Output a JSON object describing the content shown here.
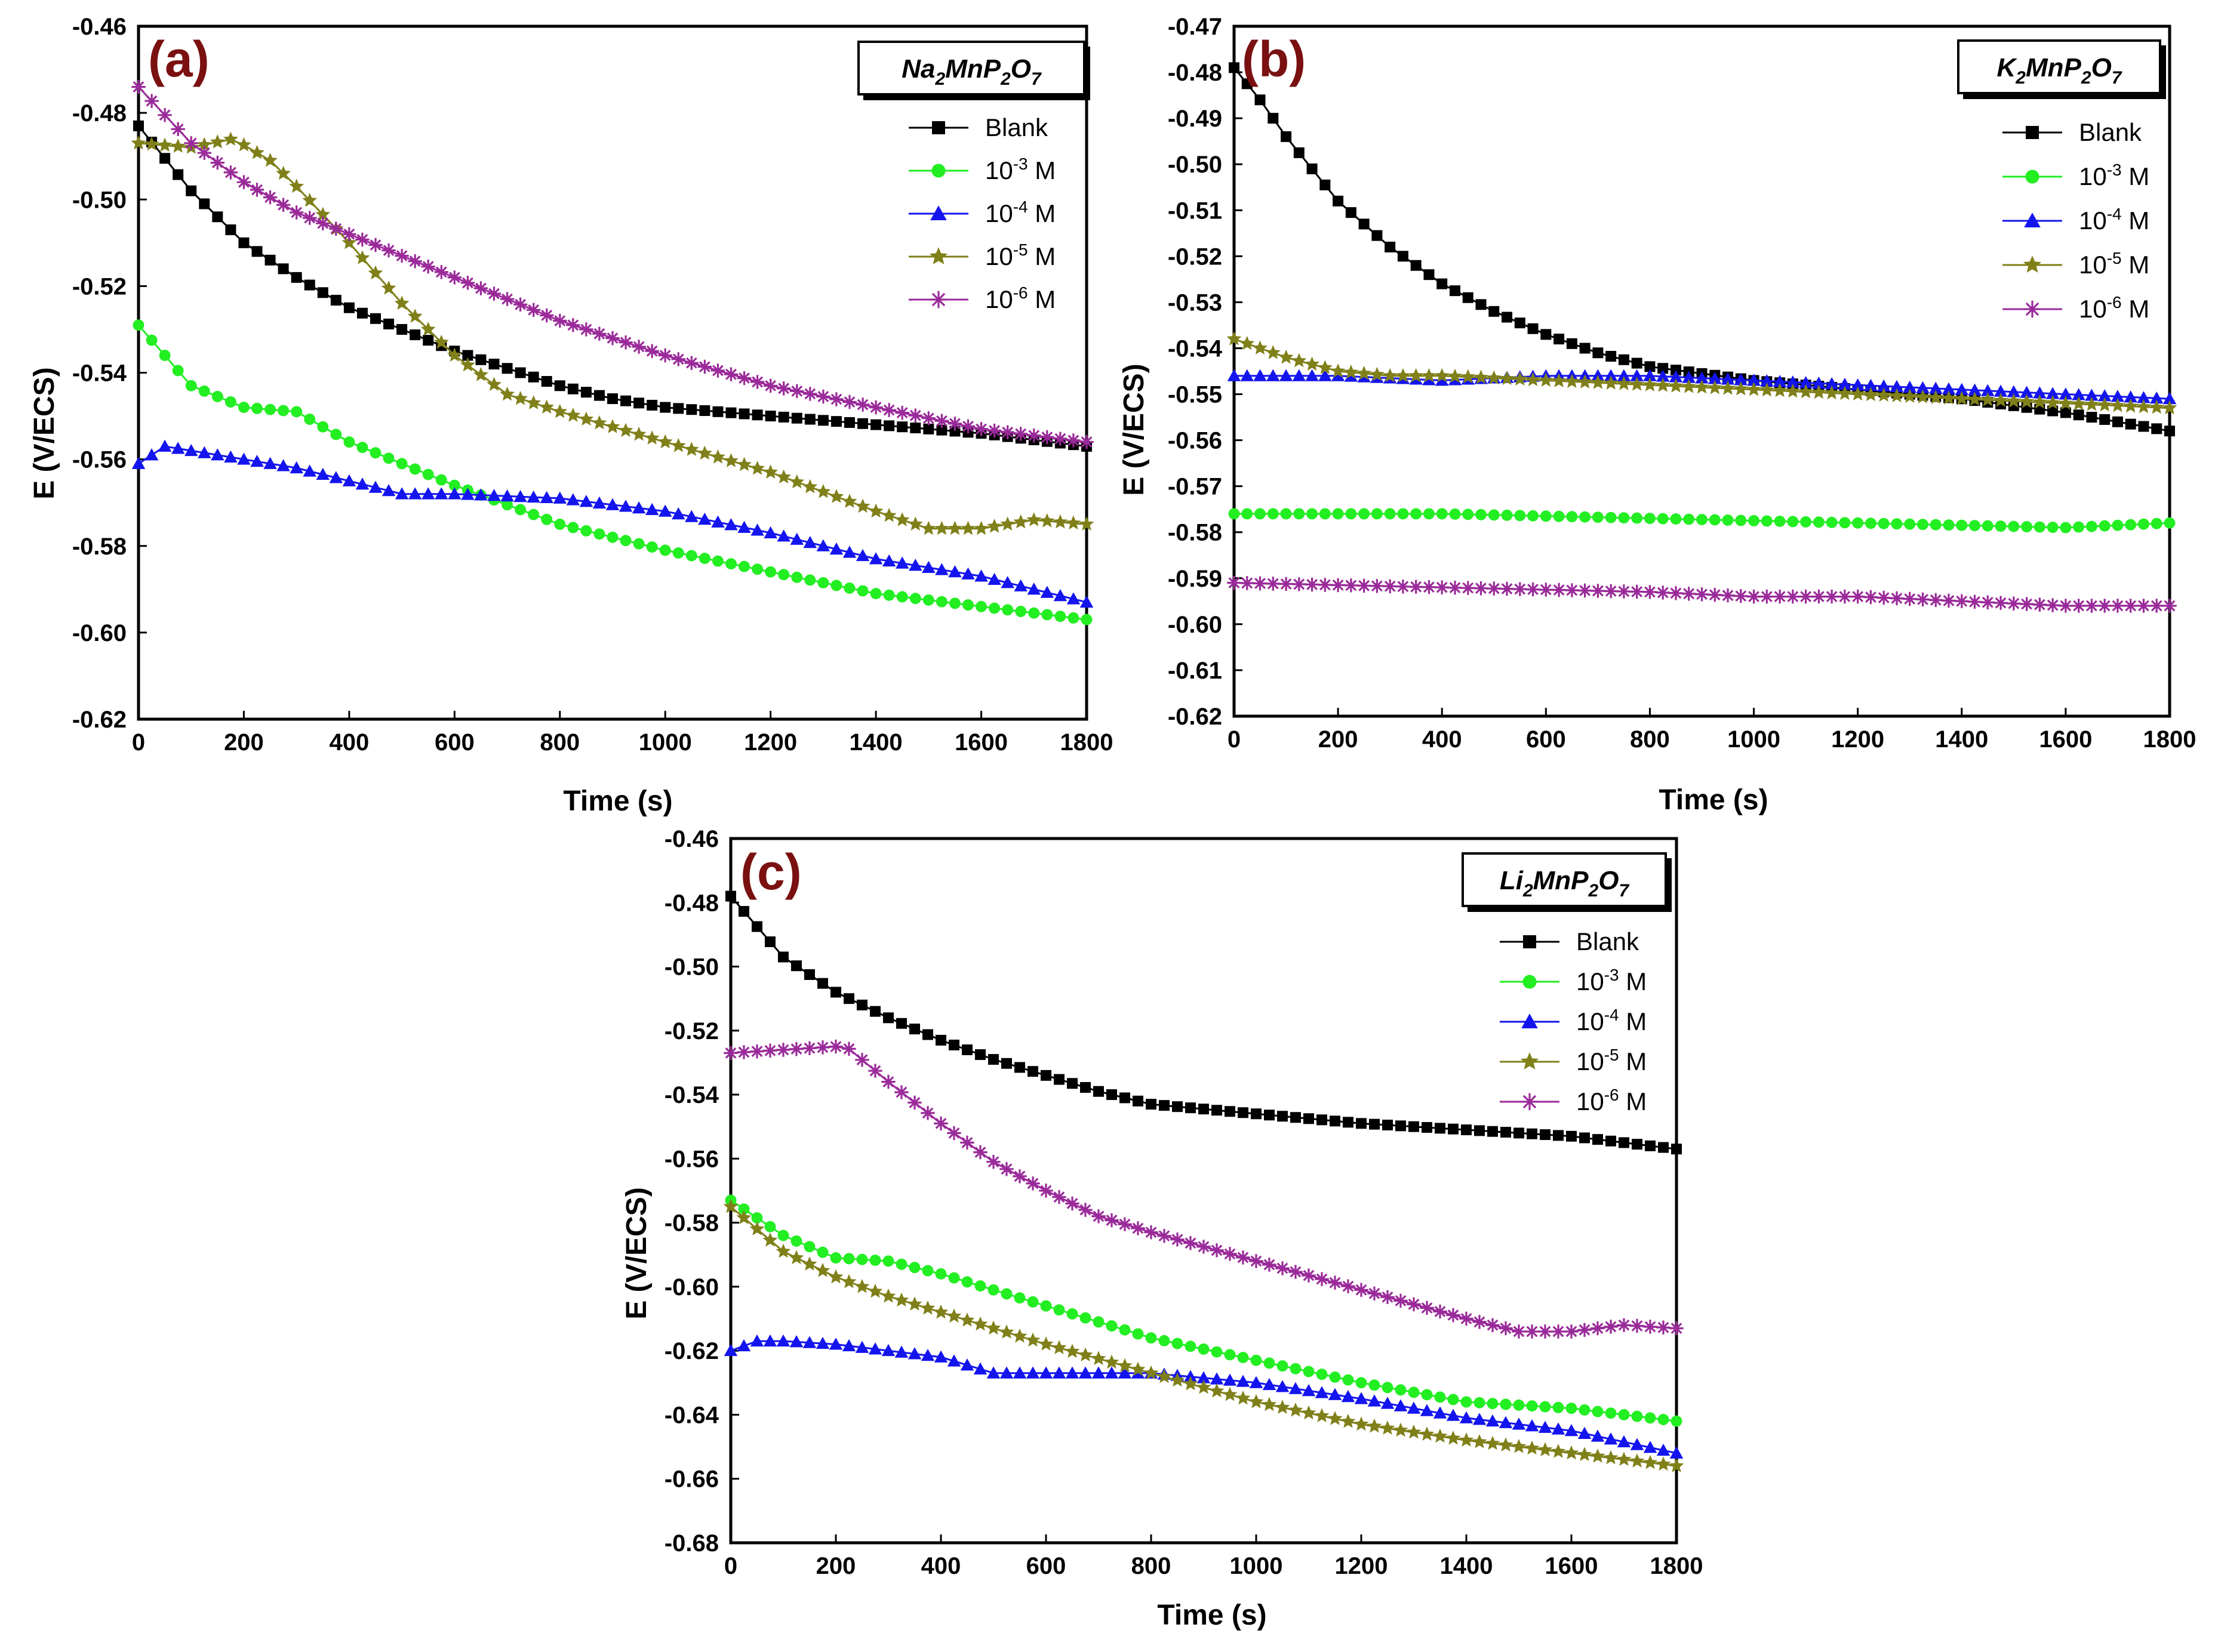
{
  "chart_data": [
    {
      "type": "line",
      "panel": "(a)",
      "compound": {
        "base": "Na",
        "s1": "2",
        "mid": "MnP",
        "s2": "2",
        "end": "O",
        "s3": "7"
      },
      "xlabel": "Time (s)",
      "ylabel": "E (V/ECS)",
      "xlim": [
        0,
        1800
      ],
      "ylim": [
        -0.62,
        -0.46
      ],
      "xticks": [
        "0",
        "200",
        "400",
        "600",
        "800",
        "1000",
        "1200",
        "1400",
        "1600",
        "1800"
      ],
      "yticks": [
        "-0.46",
        "-0.48",
        "-0.50",
        "-0.52",
        "-0.54",
        "-0.56",
        "-0.58",
        "-0.60",
        "-0.62"
      ],
      "series": [
        {
          "name": "Blank",
          "label_main": "Blank",
          "label_exp": "",
          "label_unit": "",
          "color": "#000000",
          "marker": "square",
          "x": [
            0,
            100,
            200,
            300,
            400,
            500,
            600,
            700,
            800,
            900,
            1000,
            1200,
            1400,
            1600,
            1800
          ],
          "y": [
            -0.483,
            -0.498,
            -0.51,
            -0.518,
            -0.525,
            -0.53,
            -0.535,
            -0.539,
            -0.543,
            -0.546,
            -0.548,
            -0.55,
            -0.552,
            -0.554,
            -0.557
          ]
        },
        {
          "name": "10-3 M",
          "label_main": "10",
          "label_exp": "-3",
          "label_unit": " M",
          "color": "#22ee22",
          "marker": "circle",
          "x": [
            0,
            100,
            200,
            300,
            400,
            500,
            600,
            800,
            1000,
            1200,
            1400,
            1600,
            1800
          ],
          "y": [
            -0.529,
            -0.543,
            -0.548,
            -0.549,
            -0.556,
            -0.561,
            -0.566,
            -0.575,
            -0.581,
            -0.586,
            -0.591,
            -0.594,
            -0.597
          ]
        },
        {
          "name": "10-4 M",
          "label_main": "10",
          "label_exp": "-4",
          "label_unit": " M",
          "color": "#1414ee",
          "marker": "triangle",
          "x": [
            0,
            50,
            100,
            200,
            300,
            400,
            500,
            600,
            800,
            1000,
            1200,
            1400,
            1600,
            1800
          ],
          "y": [
            -0.561,
            -0.557,
            -0.558,
            -0.56,
            -0.562,
            -0.565,
            -0.568,
            -0.568,
            -0.569,
            -0.572,
            -0.577,
            -0.583,
            -0.587,
            -0.593
          ]
        },
        {
          "name": "10-5 M",
          "label_main": "10",
          "label_exp": "-5",
          "label_unit": " M",
          "color": "#80801a",
          "marker": "star",
          "x": [
            0,
            100,
            180,
            250,
            300,
            400,
            500,
            600,
            700,
            800,
            1000,
            1200,
            1400,
            1500,
            1600,
            1700,
            1800
          ],
          "y": [
            -0.487,
            -0.488,
            -0.486,
            -0.491,
            -0.497,
            -0.51,
            -0.524,
            -0.536,
            -0.545,
            -0.549,
            -0.556,
            -0.563,
            -0.572,
            -0.576,
            -0.576,
            -0.574,
            -0.575
          ]
        },
        {
          "name": "10-6 M",
          "label_main": "10",
          "label_exp": "-6",
          "label_unit": " M",
          "color": "#9a2a9a",
          "marker": "asterisk",
          "x": [
            0,
            100,
            200,
            300,
            400,
            500,
            600,
            800,
            1000,
            1200,
            1400,
            1600,
            1800
          ],
          "y": [
            -0.474,
            -0.487,
            -0.496,
            -0.503,
            -0.508,
            -0.513,
            -0.518,
            -0.528,
            -0.536,
            -0.543,
            -0.548,
            -0.553,
            -0.556
          ]
        }
      ]
    },
    {
      "type": "line",
      "panel": "(b)",
      "compound": {
        "base": "K",
        "s1": "2",
        "mid": "MnP",
        "s2": "2",
        "end": "O",
        "s3": "7"
      },
      "xlabel": "Time (s)",
      "ylabel": "E (V/ECS)",
      "xlim": [
        0,
        1800
      ],
      "ylim": [
        -0.62,
        -0.47
      ],
      "xticks": [
        "0",
        "200",
        "400",
        "600",
        "800",
        "1000",
        "1200",
        "1400",
        "1600",
        "1800"
      ],
      "yticks": [
        "-0.47",
        "-0.48",
        "-0.49",
        "-0.50",
        "-0.51",
        "-0.52",
        "-0.53",
        "-0.54",
        "-0.55",
        "-0.56",
        "-0.57",
        "-0.58",
        "-0.59",
        "-0.60",
        "-0.61",
        "-0.62"
      ],
      "series": [
        {
          "name": "Blank",
          "label_main": "Blank",
          "label_exp": "",
          "label_unit": "",
          "color": "#000000",
          "marker": "square",
          "x": [
            0,
            50,
            100,
            200,
            300,
            400,
            500,
            600,
            700,
            800,
            1000,
            1200,
            1400,
            1600,
            1800
          ],
          "y": [
            -0.479,
            -0.486,
            -0.494,
            -0.508,
            -0.518,
            -0.526,
            -0.532,
            -0.537,
            -0.541,
            -0.544,
            -0.547,
            -0.549,
            -0.551,
            -0.554,
            -0.558
          ]
        },
        {
          "name": "10-3 M",
          "label_main": "10",
          "label_exp": "-3",
          "label_unit": " M",
          "color": "#22ee22",
          "marker": "circle",
          "x": [
            0,
            400,
            800,
            1200,
            1600,
            1800
          ],
          "y": [
            -0.576,
            -0.576,
            -0.577,
            -0.578,
            -0.579,
            -0.578
          ]
        },
        {
          "name": "10-4 M",
          "label_main": "10",
          "label_exp": "-4",
          "label_unit": " M",
          "color": "#1414ee",
          "marker": "triangle",
          "x": [
            0,
            200,
            400,
            600,
            800,
            1000,
            1200,
            1400,
            1600,
            1800
          ],
          "y": [
            -0.546,
            -0.546,
            -0.547,
            -0.546,
            -0.546,
            -0.547,
            -0.548,
            -0.549,
            -0.55,
            -0.551
          ]
        },
        {
          "name": "10-5 M",
          "label_main": "10",
          "label_exp": "-5",
          "label_unit": " M",
          "color": "#80801a",
          "marker": "star",
          "x": [
            0,
            100,
            200,
            300,
            400,
            600,
            800,
            1000,
            1200,
            1400,
            1600,
            1800
          ],
          "y": [
            -0.538,
            -0.542,
            -0.545,
            -0.546,
            -0.546,
            -0.547,
            -0.548,
            -0.549,
            -0.55,
            -0.551,
            -0.552,
            -0.553
          ]
        },
        {
          "name": "10-6 M",
          "label_main": "10",
          "label_exp": "-6",
          "label_unit": " M",
          "color": "#9a2a9a",
          "marker": "asterisk",
          "x": [
            0,
            400,
            800,
            1000,
            1200,
            1400,
            1600,
            1800
          ],
          "y": [
            -0.591,
            -0.592,
            -0.593,
            -0.594,
            -0.594,
            -0.595,
            -0.596,
            -0.596
          ]
        }
      ]
    },
    {
      "type": "line",
      "panel": "(c)",
      "compound": {
        "base": "Li",
        "s1": "2",
        "mid": "MnP",
        "s2": "2",
        "end": "O",
        "s3": "7"
      },
      "xlabel": "Time (s)",
      "ylabel": "E (V/ECS)",
      "xlim": [
        0,
        1800
      ],
      "ylim": [
        -0.68,
        -0.46
      ],
      "xticks": [
        "0",
        "200",
        "400",
        "600",
        "800",
        "1000",
        "1200",
        "1400",
        "1600",
        "1800"
      ],
      "yticks": [
        "-0.46",
        "-0.48",
        "-0.50",
        "-0.52",
        "-0.54",
        "-0.56",
        "-0.58",
        "-0.60",
        "-0.62",
        "-0.64",
        "-0.66",
        "-0.68"
      ],
      "series": [
        {
          "name": "Blank",
          "label_main": "Blank",
          "label_exp": "",
          "label_unit": "",
          "color": "#000000",
          "marker": "square",
          "x": [
            0,
            100,
            200,
            300,
            400,
            500,
            600,
            700,
            800,
            1000,
            1200,
            1400,
            1600,
            1800
          ],
          "y": [
            -0.478,
            -0.497,
            -0.508,
            -0.516,
            -0.523,
            -0.529,
            -0.534,
            -0.539,
            -0.543,
            -0.546,
            -0.549,
            -0.551,
            -0.553,
            -0.557
          ]
        },
        {
          "name": "10-3 M",
          "label_main": "10",
          "label_exp": "-3",
          "label_unit": " M",
          "color": "#22ee22",
          "marker": "circle",
          "x": [
            0,
            100,
            200,
            300,
            400,
            500,
            600,
            800,
            1000,
            1200,
            1400,
            1600,
            1800
          ],
          "y": [
            -0.573,
            -0.584,
            -0.591,
            -0.592,
            -0.596,
            -0.601,
            -0.606,
            -0.616,
            -0.623,
            -0.63,
            -0.636,
            -0.638,
            -0.642
          ]
        },
        {
          "name": "10-4 M",
          "label_main": "10",
          "label_exp": "-4",
          "label_unit": " M",
          "color": "#1414ee",
          "marker": "triangle",
          "x": [
            0,
            50,
            100,
            200,
            300,
            400,
            500,
            600,
            800,
            1000,
            1200,
            1400,
            1600,
            1800
          ],
          "y": [
            -0.62,
            -0.617,
            -0.617,
            -0.618,
            -0.62,
            -0.622,
            -0.627,
            -0.627,
            -0.627,
            -0.63,
            -0.635,
            -0.641,
            -0.645,
            -0.652
          ]
        },
        {
          "name": "10-5 M",
          "label_main": "10",
          "label_exp": "-5",
          "label_unit": " M",
          "color": "#80801a",
          "marker": "star",
          "x": [
            0,
            100,
            200,
            300,
            400,
            500,
            600,
            800,
            1000,
            1200,
            1400,
            1600,
            1800
          ],
          "y": [
            -0.575,
            -0.589,
            -0.597,
            -0.603,
            -0.608,
            -0.613,
            -0.618,
            -0.627,
            -0.636,
            -0.643,
            -0.648,
            -0.652,
            -0.656
          ]
        },
        {
          "name": "10-6 M",
          "label_main": "10",
          "label_exp": "-6",
          "label_unit": " M",
          "color": "#9a2a9a",
          "marker": "asterisk",
          "x": [
            0,
            100,
            200,
            220,
            300,
            400,
            500,
            600,
            700,
            800,
            1000,
            1200,
            1400,
            1500,
            1600,
            1700,
            1800
          ],
          "y": [
            -0.527,
            -0.526,
            -0.525,
            -0.525,
            -0.536,
            -0.549,
            -0.561,
            -0.57,
            -0.578,
            -0.583,
            -0.592,
            -0.601,
            -0.61,
            -0.614,
            -0.614,
            -0.612,
            -0.613
          ]
        }
      ]
    }
  ]
}
